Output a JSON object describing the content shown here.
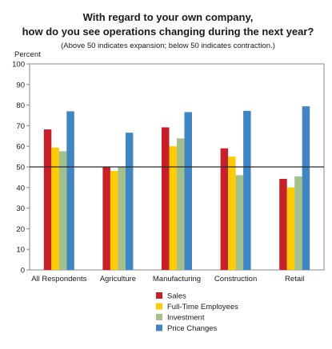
{
  "chart_data": {
    "type": "bar",
    "title": "With regard to your own company,",
    "title_line2": "how do you see operations changing during the next year?",
    "subtitle": "(Above 50 indicates expansion; below 50 indicates contraction.)",
    "ylabel": "Percent",
    "ylim": [
      0,
      100
    ],
    "yticks": [
      0,
      10,
      20,
      30,
      40,
      50,
      60,
      70,
      80,
      90,
      100
    ],
    "reference_line": 50,
    "grid": false,
    "legend_position": "bottom-center",
    "categories": [
      "All Respondents",
      "Agriculture",
      "Manufacturing",
      "Construction",
      "Retail"
    ],
    "series": [
      {
        "name": "Sales",
        "color": "#c8202b",
        "values": [
          68.2,
          50.0,
          69.2,
          59.0,
          44.2
        ]
      },
      {
        "name": "Full-Time Employees",
        "color": "#ffcb05",
        "values": [
          59.4,
          48.0,
          60.0,
          55.0,
          40.0
        ]
      },
      {
        "name": "Investment",
        "color": "#a3bf8c",
        "values": [
          57.6,
          49.8,
          63.8,
          46.0,
          45.4
        ]
      },
      {
        "name": "Price Changes",
        "color": "#3f86c3",
        "values": [
          77.0,
          66.6,
          76.6,
          77.2,
          79.4
        ]
      }
    ]
  }
}
